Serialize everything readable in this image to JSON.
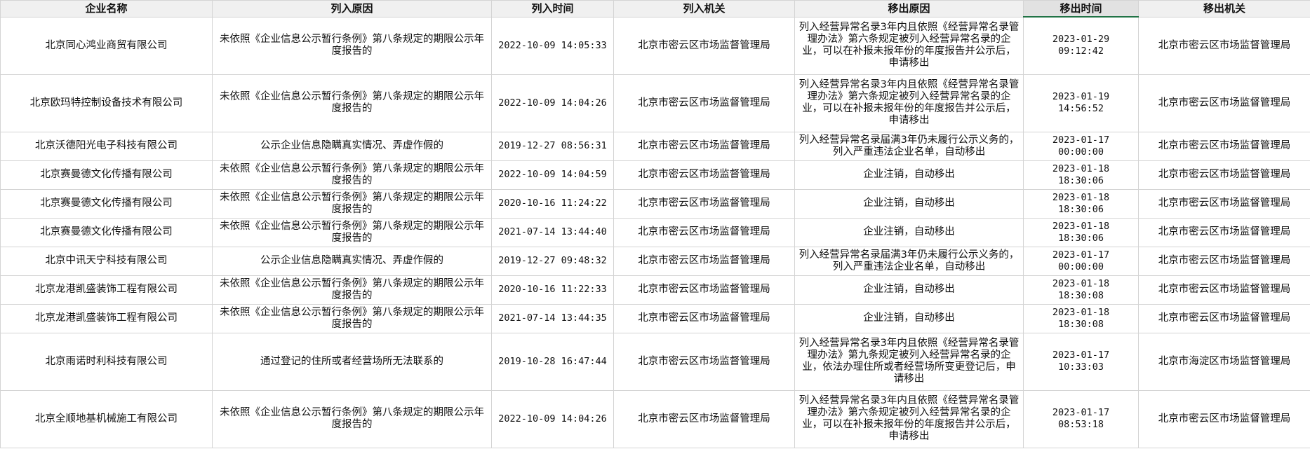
{
  "table": {
    "headers": [
      "企业名称",
      "列入原因",
      "列入时间",
      "列入机关",
      "移出原因",
      "移出时间",
      "移出机关"
    ],
    "rows": [
      [
        "北京同心鸿业商贸有限公司",
        "未依照《企业信息公示暂行条例》第八条规定的期限公示年度报告的",
        "2022-10-09 14:05:33",
        "北京市密云区市场监督管理局",
        "列入经营异常名录3年内且依照《经营异常名录管理办法》第六条规定被列入经营异常名录的企业，可以在补报未报年份的年度报告并公示后，申请移出",
        "2023-01-29 09:12:42",
        "北京市密云区市场监督管理局"
      ],
      [
        "北京欧玛特控制设备技术有限公司",
        "未依照《企业信息公示暂行条例》第八条规定的期限公示年度报告的",
        "2022-10-09 14:04:26",
        "北京市密云区市场监督管理局",
        "列入经营异常名录3年内且依照《经营异常名录管理办法》第六条规定被列入经营异常名录的企业，可以在补报未报年份的年度报告并公示后，申请移出",
        "2023-01-19 14:56:52",
        "北京市密云区市场监督管理局"
      ],
      [
        "北京沃德阳光电子科技有限公司",
        "公示企业信息隐瞒真实情况、弄虚作假的",
        "2019-12-27 08:56:31",
        "北京市密云区市场监督管理局",
        "列入经营异常名录届满3年仍未履行公示义务的，列入严重违法企业名单，自动移出",
        "2023-01-17 00:00:00",
        "北京市密云区市场监督管理局"
      ],
      [
        "北京赛曼德文化传播有限公司",
        "未依照《企业信息公示暂行条例》第八条规定的期限公示年度报告的",
        "2022-10-09 14:04:59",
        "北京市密云区市场监督管理局",
        "企业注销，自动移出",
        "2023-01-18 18:30:06",
        "北京市密云区市场监督管理局"
      ],
      [
        "北京赛曼德文化传播有限公司",
        "未依照《企业信息公示暂行条例》第八条规定的期限公示年度报告的",
        "2020-10-16 11:24:22",
        "北京市密云区市场监督管理局",
        "企业注销，自动移出",
        "2023-01-18 18:30:06",
        "北京市密云区市场监督管理局"
      ],
      [
        "北京赛曼德文化传播有限公司",
        "未依照《企业信息公示暂行条例》第八条规定的期限公示年度报告的",
        "2021-07-14 13:44:40",
        "北京市密云区市场监督管理局",
        "企业注销，自动移出",
        "2023-01-18 18:30:06",
        "北京市密云区市场监督管理局"
      ],
      [
        "北京中讯天宁科技有限公司",
        "公示企业信息隐瞒真实情况、弄虚作假的",
        "2019-12-27 09:48:32",
        "北京市密云区市场监督管理局",
        "列入经营异常名录届满3年仍未履行公示义务的，列入严重违法企业名单，自动移出",
        "2023-01-17 00:00:00",
        "北京市密云区市场监督管理局"
      ],
      [
        "北京龙港凯盛装饰工程有限公司",
        "未依照《企业信息公示暂行条例》第八条规定的期限公示年度报告的",
        "2020-10-16 11:22:33",
        "北京市密云区市场监督管理局",
        "企业注销，自动移出",
        "2023-01-18 18:30:08",
        "北京市密云区市场监督管理局"
      ],
      [
        "北京龙港凯盛装饰工程有限公司",
        "未依照《企业信息公示暂行条例》第八条规定的期限公示年度报告的",
        "2021-07-14 13:44:35",
        "北京市密云区市场监督管理局",
        "企业注销，自动移出",
        "2023-01-18 18:30:08",
        "北京市密云区市场监督管理局"
      ],
      [
        "北京雨诺时利科技有限公司",
        "通过登记的住所或者经营场所无法联系的",
        "2019-10-28 16:47:44",
        "北京市密云区市场监督管理局",
        "列入经营异常名录3年内且依照《经营异常名录管理办法》第九条规定被列入经营异常名录的企业，依法办理住所或者经营场所变更登记后，申请移出",
        "2023-01-17 10:33:03",
        "北京市海淀区市场监督管理局"
      ],
      [
        "北京全顺地基机械施工有限公司",
        "未依照《企业信息公示暂行条例》第八条规定的期限公示年度报告的",
        "2022-10-09 14:04:26",
        "北京市密云区市场监督管理局",
        "列入经营异常名录3年内且依照《经营异常名录管理办法》第六条规定被列入经营异常名录的企业，可以在补报未报年份的年度报告并公示后，申请移出",
        "2023-01-17 08:53:18",
        "北京市密云区市场监督管理局"
      ]
    ]
  }
}
